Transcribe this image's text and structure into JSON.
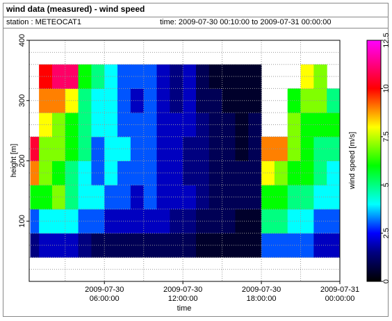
{
  "chart_data": {
    "type": "heatmap",
    "title": "wind data (measured) - wind speed",
    "station": "station : METEOCAT1",
    "time_range": "time: 2009-07-30 00:10:00 to 2009-07-31 00:00:00",
    "x_label": "time",
    "y_label": "height [m]",
    "colorbar_label": "wind speed [m/s]",
    "xlim": [
      "2009-07-30 00:15:00",
      "2009-07-31 00:00:00"
    ],
    "xticks": [
      "2009-07-30 06:00:00",
      "2009-07-30 12:00:00",
      "2009-07-30 18:00:00",
      "2009-07-31 00:00:00"
    ],
    "xminorticks": [
      "2009-07-30 03:00:00",
      "2009-07-30 09:00:00",
      "2009-07-30 15:00:00",
      "2009-07-30 21:00:00"
    ],
    "ylim": [
      0,
      400
    ],
    "yticks": [
      100,
      200,
      300,
      400
    ],
    "yminorticks": [
      20,
      40,
      60,
      80,
      120,
      140,
      160,
      180,
      220,
      240,
      260,
      280,
      320,
      340,
      360,
      380
    ],
    "grid": true,
    "x_bins": [
      "2009-07-30 00:20:00",
      "2009-07-30 01:00:00",
      "2009-07-30 02:00:00",
      "2009-07-30 03:00:00",
      "2009-07-30 04:00:00",
      "2009-07-30 05:00:00",
      "2009-07-30 06:00:00",
      "2009-07-30 07:00:00",
      "2009-07-30 08:00:00",
      "2009-07-30 09:00:00",
      "2009-07-30 10:00:00",
      "2009-07-30 11:00:00",
      "2009-07-30 12:00:00",
      "2009-07-30 13:00:00",
      "2009-07-30 14:00:00",
      "2009-07-30 15:00:00",
      "2009-07-30 16:00:00",
      "2009-07-30 17:00:00",
      "2009-07-30 18:00:00",
      "2009-07-30 19:00:00",
      "2009-07-30 20:00:00",
      "2009-07-30 21:00:00",
      "2009-07-30 22:00:00",
      "2009-07-30 23:00:00",
      "2009-07-31 00:00:00"
    ],
    "y_bins": [
      40,
      80,
      120,
      160,
      200,
      240,
      280,
      320,
      360
    ],
    "z": [
      [
        1.5,
        3,
        6,
        9,
        10.5,
        null,
        null,
        null
      ],
      [
        2,
        4,
        6,
        7,
        7,
        8,
        9,
        10
      ],
      [
        2,
        4,
        7,
        6,
        7,
        7,
        9,
        11
      ],
      [
        2,
        4,
        5,
        5,
        6,
        6,
        8,
        11
      ],
      [
        1.5,
        3,
        4,
        4,
        5,
        5,
        5,
        6
      ],
      [
        1,
        3,
        4,
        3,
        3,
        4,
        4,
        5
      ],
      [
        1,
        2,
        3,
        4,
        4,
        4,
        4,
        4
      ],
      [
        1,
        2,
        3,
        3,
        4,
        3,
        3,
        3
      ],
      [
        1,
        2,
        2,
        3,
        3,
        3,
        2,
        3
      ],
      [
        1,
        2,
        3,
        3,
        3,
        3,
        3,
        3
      ],
      [
        1,
        2,
        2,
        2,
        2,
        2,
        2,
        2
      ],
      [
        1,
        1.5,
        2,
        2,
        2,
        2,
        1.5,
        1.5
      ],
      [
        1,
        1.5,
        2,
        1.5,
        1.5,
        2,
        2,
        2
      ],
      [
        0.5,
        1,
        1.5,
        1.5,
        1.5,
        1.5,
        1,
        1
      ],
      [
        0.5,
        1,
        1,
        1,
        1,
        1,
        1,
        0.5
      ],
      [
        0.5,
        1,
        1,
        1,
        1,
        1,
        0.5,
        0.5
      ],
      [
        0.5,
        0.5,
        1,
        1,
        0.5,
        0.5,
        0.5,
        0.5
      ],
      [
        0.5,
        0.5,
        1,
        1,
        1,
        1,
        0.5,
        0.5
      ],
      [
        3,
        5,
        6,
        8,
        9,
        null,
        null,
        null
      ],
      [
        3,
        5,
        6,
        7,
        9,
        null,
        null,
        null
      ],
      [
        3,
        4,
        5,
        6,
        7,
        7,
        6,
        null
      ],
      [
        3,
        4,
        5,
        6,
        6,
        6,
        7,
        8
      ],
      [
        2,
        3,
        4,
        5,
        5,
        6,
        7,
        7
      ],
      [
        2,
        3,
        4,
        4,
        5,
        6,
        5,
        null
      ]
    ],
    "zlim": [
      0,
      12.5
    ],
    "zticks": [
      0,
      2.5,
      5,
      7.5,
      10,
      12.5
    ],
    "colorscale": [
      [
        0,
        "#000000"
      ],
      [
        1.5,
        "#000080"
      ],
      [
        2.5,
        "#0000ff"
      ],
      [
        4,
        "#00ffff"
      ],
      [
        6,
        "#00ff00"
      ],
      [
        8,
        "#ffff00"
      ],
      [
        10,
        "#ff0000"
      ],
      [
        12.5,
        "#ff00ff"
      ]
    ]
  }
}
